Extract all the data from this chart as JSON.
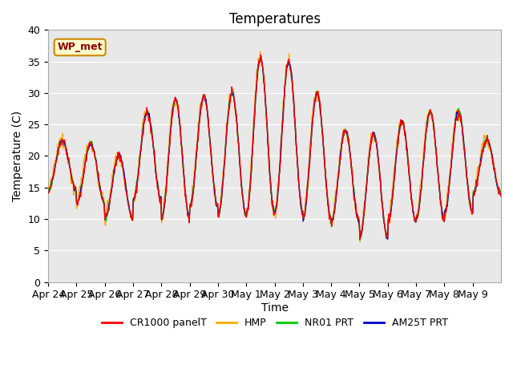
{
  "title": "Temperatures",
  "ylabel": "Temperature (C)",
  "xlabel": "Time",
  "annotation": "WP_met",
  "legend_labels": [
    "CR1000 panelT",
    "HMP",
    "NR01 PRT",
    "AM25T PRT"
  ],
  "legend_colors": [
    "#ff0000",
    "#ffaa00",
    "#00cc00",
    "#0000cc"
  ],
  "ylim": [
    0,
    40
  ],
  "bg_color": "#e8e8e8",
  "title_fontsize": 12,
  "axis_fontsize": 10,
  "tick_fontsize": 9,
  "x_tick_labels": [
    "Apr 24",
    "Apr 25",
    "Apr 26",
    "Apr 27",
    "Apr 28",
    "Apr 29",
    "Apr 30",
    "May 1",
    "May 2",
    "May 3",
    "May 4",
    "May 5",
    "May 6",
    "May 7",
    "May 8",
    "May 9"
  ],
  "daily_peaks": [
    22.5,
    22.0,
    20.0,
    27.0,
    29.0,
    29.5,
    30.0,
    35.5,
    35.0,
    30.0,
    24.0,
    23.5,
    25.5,
    27.0,
    27.0,
    22.5
  ],
  "daily_mins": [
    14.5,
    12.5,
    10.0,
    13.0,
    10.0,
    12.0,
    10.5,
    11.0,
    11.0,
    10.0,
    9.5,
    7.0,
    9.5,
    10.0,
    11.0,
    14.0
  ]
}
